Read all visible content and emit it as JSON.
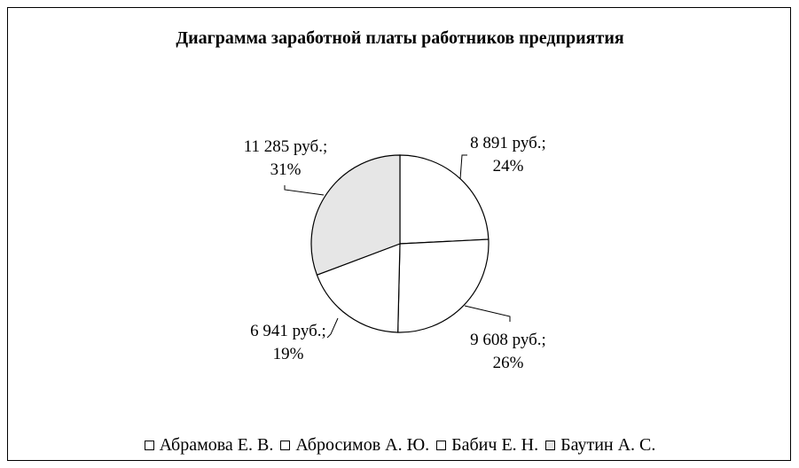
{
  "chart_data": {
    "type": "pie",
    "title": "Диаграмма заработной платы работников предприятия",
    "legend_position": "bottom",
    "slices": [
      {
        "name": "Абрамова Е. В.",
        "value": 8891,
        "value_label": "8 891 руб.;",
        "percent_label": "24%",
        "color": "#ffffff"
      },
      {
        "name": "Абросимов А. Ю.",
        "value": 9608,
        "value_label": "9 608 руб.;",
        "percent_label": "26%",
        "color": "#ffffff"
      },
      {
        "name": "Бабич Е. Н.",
        "value": 6941,
        "value_label": "6 941 руб.;",
        "percent_label": "19%",
        "color": "#ffffff"
      },
      {
        "name": "Баутин А. С.",
        "value": 11285,
        "value_label": "11 285 руб.;",
        "percent_label": "31%",
        "color": "#e6e6e6"
      }
    ]
  }
}
